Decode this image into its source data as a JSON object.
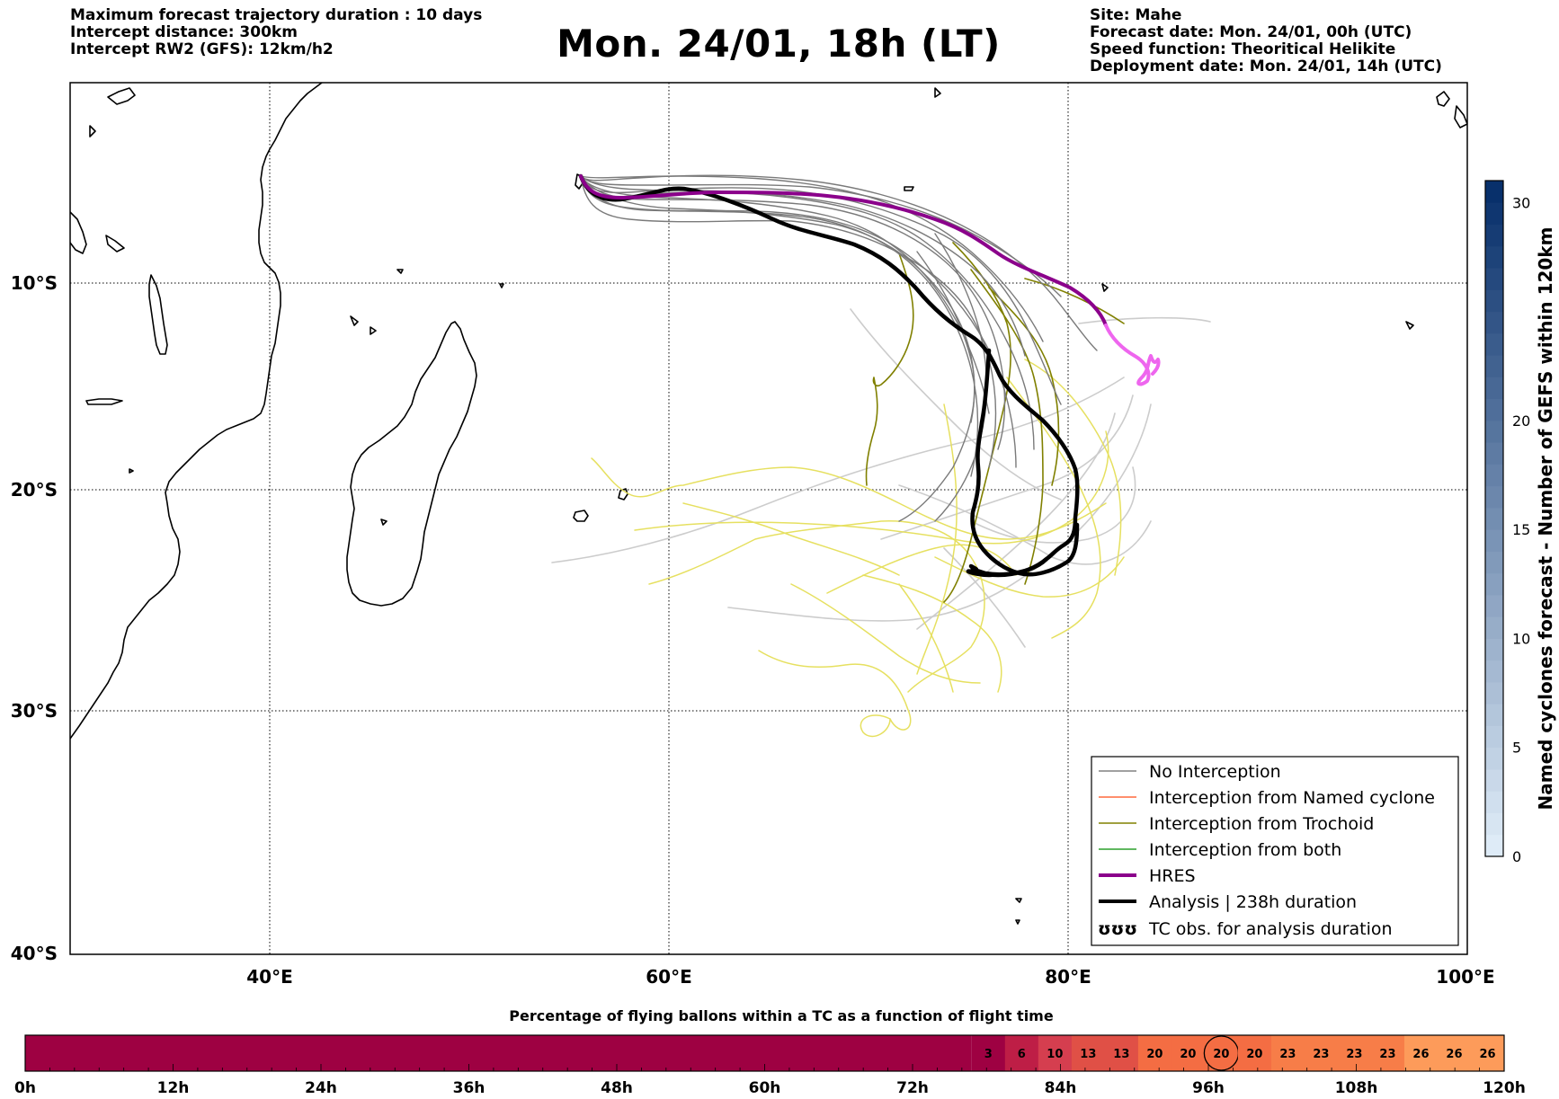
{
  "header_left": [
    "Maximum forecast trajectory duration : 10 days",
    "Intercept distance: 300km",
    "Intercept RW2 (GFS):  12km/h2"
  ],
  "title": "Mon. 24/01, 18h (LT)",
  "header_right": [
    "Site: Mahe",
    "Forecast date: Mon. 24/01, 00h (UTC)",
    "Speed function: Theoritical Helikite",
    "Deployment date: Mon. 24/01, 14h (UTC)"
  ],
  "map": {
    "lon_ticks": [
      "40°E",
      "60°E",
      "80°E",
      "100°E"
    ],
    "lat_ticks": [
      "10°S",
      "20°S",
      "30°S",
      "40°S"
    ],
    "legend": [
      {
        "label": "No Interception",
        "color": "#808080",
        "style": "line"
      },
      {
        "label": "Interception from Named cyclone",
        "color": "#ff6a3d",
        "style": "line"
      },
      {
        "label": "Interception from Trochoid",
        "color": "#808000",
        "style": "line"
      },
      {
        "label": "Interception from both",
        "color": "#2ca02c",
        "style": "line"
      },
      {
        "label": "HRES",
        "color": "#8b008b",
        "style": "thick"
      },
      {
        "label": "Analysis | 238h duration",
        "color": "#000000",
        "style": "thick"
      },
      {
        "label": "TC obs. for analysis duration",
        "color": "#000000",
        "style": "symbol",
        "symbol": "ʊʊʊ"
      }
    ]
  },
  "colorbar": {
    "label": "Named cyclones forecast - Number of GEFS within 120km",
    "ticks": [
      "0",
      "5",
      "10",
      "15",
      "20",
      "30"
    ],
    "range": [
      0,
      31
    ]
  },
  "bottom_bar": {
    "title": "Percentage of flying ballons within a TC as a function of flight time",
    "hour_ticks": [
      "0h",
      "12h",
      "24h",
      "36h",
      "48h",
      "60h",
      "72h",
      "84h",
      "96h",
      "108h",
      "120h"
    ],
    "late_values": [
      "3",
      "6",
      "10",
      "13",
      "13",
      "20",
      "20",
      "20",
      "20",
      "23",
      "23",
      "23",
      "23",
      "26",
      "26",
      "26"
    ],
    "highlighted_value_index": 7
  },
  "colors": {
    "hres": "#8b008b",
    "hres_tail": "#ee66ee",
    "analysis": "#000000",
    "gefs_no_interception": "#7a7a7a",
    "light_tracks": "#cccccc",
    "yellow_tracks": "#e6e060",
    "trochoid": "#808000",
    "bar_early": "#9e0142"
  }
}
